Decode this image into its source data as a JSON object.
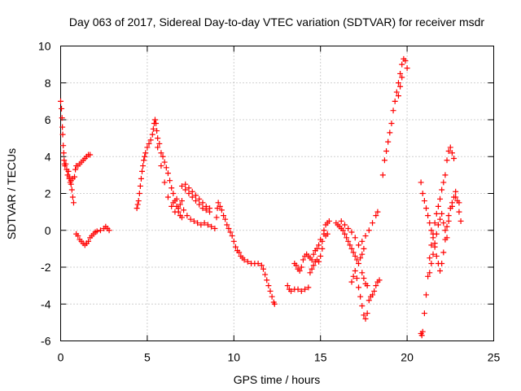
{
  "chart_data": {
    "type": "scatter",
    "title": "Day 063 of 2017, Sidereal Day-to-day VTEC variation (SDTVAR) for receiver msdr",
    "xlabel": "GPS time / hours",
    "ylabel": "SDTVAR / TECUs",
    "xlim": [
      0,
      25
    ],
    "ylim": [
      -6,
      10
    ],
    "xticks": [
      "0",
      "5",
      "10",
      "15",
      "20",
      "25"
    ],
    "yticks": [
      "-6",
      "-4",
      "-2",
      "0",
      "2",
      "4",
      "6",
      "8",
      "10"
    ],
    "grid": true,
    "marker": "+",
    "color": "#ff0000",
    "series": [
      {
        "name": "SDTVAR",
        "points": [
          [
            0.0,
            7.0
          ],
          [
            0.05,
            6.6
          ],
          [
            0.08,
            6.1
          ],
          [
            0.1,
            5.6
          ],
          [
            0.12,
            5.2
          ],
          [
            0.15,
            4.6
          ],
          [
            0.18,
            4.2
          ],
          [
            0.2,
            3.8
          ],
          [
            0.22,
            3.6
          ],
          [
            0.25,
            3.5
          ],
          [
            0.3,
            3.6
          ],
          [
            0.35,
            3.3
          ],
          [
            0.4,
            3.0
          ],
          [
            0.45,
            3.2
          ],
          [
            0.5,
            2.9
          ],
          [
            0.55,
            2.6
          ],
          [
            0.6,
            2.5
          ],
          [
            0.65,
            2.2
          ],
          [
            0.7,
            1.8
          ],
          [
            0.75,
            1.5
          ],
          [
            0.5,
            2.8
          ],
          [
            0.6,
            2.7
          ],
          [
            0.7,
            2.8
          ],
          [
            0.8,
            2.9
          ],
          [
            0.85,
            3.3
          ],
          [
            0.9,
            3.5
          ],
          [
            1.0,
            3.5
          ],
          [
            1.1,
            3.6
          ],
          [
            1.2,
            3.7
          ],
          [
            1.3,
            3.8
          ],
          [
            1.4,
            3.9
          ],
          [
            1.5,
            4.0
          ],
          [
            1.6,
            4.1
          ],
          [
            1.7,
            4.1
          ],
          [
            0.9,
            -0.2
          ],
          [
            1.0,
            -0.3
          ],
          [
            1.1,
            -0.5
          ],
          [
            1.2,
            -0.6
          ],
          [
            1.3,
            -0.7
          ],
          [
            1.4,
            -0.8
          ],
          [
            1.5,
            -0.7
          ],
          [
            1.6,
            -0.6
          ],
          [
            1.7,
            -0.4
          ],
          [
            1.8,
            -0.3
          ],
          [
            1.9,
            -0.2
          ],
          [
            2.0,
            -0.1
          ],
          [
            2.1,
            -0.05
          ],
          [
            2.3,
            0.0
          ],
          [
            2.5,
            0.1
          ],
          [
            2.6,
            0.2
          ],
          [
            2.7,
            0.1
          ],
          [
            2.8,
            0.0
          ],
          [
            4.4,
            1.2
          ],
          [
            4.45,
            1.4
          ],
          [
            4.5,
            1.6
          ],
          [
            4.55,
            2.0
          ],
          [
            4.6,
            2.4
          ],
          [
            4.65,
            2.8
          ],
          [
            4.7,
            3.2
          ],
          [
            4.75,
            3.5
          ],
          [
            4.8,
            3.8
          ],
          [
            4.85,
            4.0
          ],
          [
            4.9,
            4.2
          ],
          [
            5.0,
            4.5
          ],
          [
            5.1,
            4.7
          ],
          [
            5.2,
            4.9
          ],
          [
            5.3,
            5.2
          ],
          [
            5.35,
            5.5
          ],
          [
            5.4,
            5.8
          ],
          [
            5.45,
            6.0
          ],
          [
            5.5,
            5.8
          ],
          [
            5.55,
            5.4
          ],
          [
            5.6,
            5.0
          ],
          [
            5.7,
            4.7
          ],
          [
            5.8,
            4.2
          ],
          [
            5.9,
            4.0
          ],
          [
            6.0,
            3.7
          ],
          [
            6.1,
            3.4
          ],
          [
            6.2,
            3.1
          ],
          [
            6.3,
            2.7
          ],
          [
            6.4,
            2.3
          ],
          [
            6.5,
            2.0
          ],
          [
            6.6,
            1.6
          ],
          [
            6.7,
            1.3
          ],
          [
            6.8,
            1.0
          ],
          [
            6.9,
            0.8
          ],
          [
            7.0,
            0.7
          ],
          [
            5.6,
            4.5
          ],
          [
            5.8,
            3.5
          ],
          [
            6.0,
            2.6
          ],
          [
            6.2,
            1.8
          ],
          [
            6.4,
            1.3
          ],
          [
            6.6,
            1.0
          ],
          [
            6.8,
            1.2
          ],
          [
            7.0,
            1.6
          ],
          [
            7.2,
            2.2
          ],
          [
            7.4,
            2.0
          ],
          [
            7.6,
            1.8
          ],
          [
            7.8,
            1.6
          ],
          [
            8.0,
            1.4
          ],
          [
            8.2,
            1.2
          ],
          [
            8.4,
            1.1
          ],
          [
            8.6,
            1.0
          ],
          [
            7.0,
            2.4
          ],
          [
            7.2,
            2.5
          ],
          [
            7.4,
            2.3
          ],
          [
            7.6,
            2.1
          ],
          [
            7.8,
            1.9
          ],
          [
            8.0,
            1.7
          ],
          [
            8.2,
            1.5
          ],
          [
            8.4,
            1.3
          ],
          [
            8.6,
            1.2
          ],
          [
            6.5,
            1.5
          ],
          [
            6.7,
            1.7
          ],
          [
            6.9,
            1.4
          ],
          [
            7.1,
            1.1
          ],
          [
            7.3,
            0.8
          ],
          [
            7.5,
            0.6
          ],
          [
            7.7,
            0.5
          ],
          [
            7.9,
            0.4
          ],
          [
            8.1,
            0.3
          ],
          [
            8.3,
            0.4
          ],
          [
            8.5,
            0.3
          ],
          [
            8.7,
            0.2
          ],
          [
            8.9,
            0.1
          ],
          [
            9.0,
            0.7
          ],
          [
            9.05,
            1.2
          ],
          [
            9.1,
            1.5
          ],
          [
            9.2,
            1.3
          ],
          [
            9.3,
            1.1
          ],
          [
            9.4,
            0.8
          ],
          [
            9.5,
            0.6
          ],
          [
            9.6,
            0.3
          ],
          [
            9.7,
            0.1
          ],
          [
            9.8,
            -0.1
          ],
          [
            9.9,
            -0.3
          ],
          [
            10.0,
            -0.6
          ],
          [
            10.1,
            -0.9
          ],
          [
            10.2,
            -1.1
          ],
          [
            10.3,
            -1.2
          ],
          [
            10.4,
            -1.4
          ],
          [
            10.5,
            -1.5
          ],
          [
            10.6,
            -1.6
          ],
          [
            10.8,
            -1.7
          ],
          [
            11.0,
            -1.8
          ],
          [
            11.2,
            -1.8
          ],
          [
            11.4,
            -1.8
          ],
          [
            11.6,
            -1.9
          ],
          [
            11.7,
            -2.1
          ],
          [
            11.8,
            -2.4
          ],
          [
            11.9,
            -2.7
          ],
          [
            12.0,
            -3.0
          ],
          [
            12.1,
            -3.3
          ],
          [
            12.2,
            -3.6
          ],
          [
            12.3,
            -3.9
          ],
          [
            12.35,
            -4.0
          ],
          [
            13.1,
            -3.0
          ],
          [
            13.2,
            -3.2
          ],
          [
            13.3,
            -3.3
          ],
          [
            13.5,
            -3.2
          ],
          [
            13.7,
            -3.2
          ],
          [
            13.9,
            -3.3
          ],
          [
            14.1,
            -3.2
          ],
          [
            14.3,
            -3.1
          ],
          [
            13.5,
            -1.8
          ],
          [
            13.6,
            -1.9
          ],
          [
            13.7,
            -2.1
          ],
          [
            13.8,
            -2.2
          ],
          [
            13.9,
            -2.0
          ],
          [
            14.0,
            -1.6
          ],
          [
            14.1,
            -1.4
          ],
          [
            14.2,
            -1.3
          ],
          [
            14.3,
            -1.4
          ],
          [
            14.4,
            -1.5
          ],
          [
            14.5,
            -1.6
          ],
          [
            14.6,
            -1.3
          ],
          [
            14.7,
            -1.1
          ],
          [
            14.8,
            -1.0
          ],
          [
            14.9,
            -0.8
          ],
          [
            15.0,
            -0.5
          ],
          [
            14.4,
            -2.3
          ],
          [
            14.5,
            -2.1
          ],
          [
            14.6,
            -1.9
          ],
          [
            14.7,
            -1.7
          ],
          [
            14.8,
            -1.6
          ],
          [
            14.9,
            -1.7
          ],
          [
            15.0,
            -1.4
          ],
          [
            15.1,
            -1.0
          ],
          [
            15.1,
            -0.6
          ],
          [
            15.2,
            0.0
          ],
          [
            15.3,
            0.3
          ],
          [
            15.4,
            0.4
          ],
          [
            15.5,
            0.5
          ],
          [
            15.2,
            -0.2
          ],
          [
            15.3,
            -0.3
          ],
          [
            15.4,
            -0.2
          ],
          [
            15.9,
            0.4
          ],
          [
            16.0,
            0.3
          ],
          [
            16.1,
            0.2
          ],
          [
            16.2,
            0.1
          ],
          [
            16.3,
            0.0
          ],
          [
            16.4,
            -0.2
          ],
          [
            16.5,
            -0.4
          ],
          [
            16.6,
            -0.6
          ],
          [
            16.7,
            -0.8
          ],
          [
            16.8,
            -1.0
          ],
          [
            16.9,
            -1.2
          ],
          [
            17.0,
            -1.4
          ],
          [
            17.1,
            -1.6
          ],
          [
            17.2,
            -1.8
          ],
          [
            17.3,
            -1.5
          ],
          [
            17.4,
            -1.3
          ],
          [
            17.5,
            -1.0
          ],
          [
            16.2,
            0.5
          ],
          [
            16.4,
            0.3
          ],
          [
            16.6,
            0.1
          ],
          [
            16.8,
            -0.1
          ],
          [
            17.0,
            -0.4
          ],
          [
            17.2,
            -0.8
          ],
          [
            17.4,
            -0.6
          ],
          [
            17.6,
            -0.3
          ],
          [
            17.8,
            0.0
          ],
          [
            18.0,
            0.4
          ],
          [
            18.2,
            0.8
          ],
          [
            18.3,
            1.0
          ],
          [
            16.8,
            -2.8
          ],
          [
            16.9,
            -2.5
          ],
          [
            17.0,
            -2.2
          ],
          [
            17.1,
            -2.6
          ],
          [
            17.2,
            -3.1
          ],
          [
            17.3,
            -3.6
          ],
          [
            17.4,
            -4.1
          ],
          [
            17.5,
            -4.6
          ],
          [
            17.6,
            -4.8
          ],
          [
            17.7,
            -4.5
          ],
          [
            17.8,
            -3.8
          ],
          [
            17.9,
            -3.6
          ],
          [
            18.0,
            -3.5
          ],
          [
            18.1,
            -3.3
          ],
          [
            18.2,
            -3.0
          ],
          [
            18.3,
            -2.8
          ],
          [
            18.4,
            -2.7
          ],
          [
            17.4,
            -2.3
          ],
          [
            17.5,
            -2.6
          ],
          [
            17.6,
            -2.9
          ],
          [
            17.7,
            -3.0
          ],
          [
            18.6,
            3.0
          ],
          [
            18.7,
            3.8
          ],
          [
            18.8,
            4.3
          ],
          [
            18.9,
            4.8
          ],
          [
            19.0,
            5.3
          ],
          [
            19.1,
            5.8
          ],
          [
            19.2,
            6.5
          ],
          [
            19.3,
            7.0
          ],
          [
            19.4,
            7.5
          ],
          [
            19.5,
            8.0
          ],
          [
            19.6,
            8.5
          ],
          [
            19.7,
            9.0
          ],
          [
            19.8,
            9.3
          ],
          [
            19.9,
            9.2
          ],
          [
            20.0,
            8.8
          ],
          [
            19.5,
            7.3
          ],
          [
            19.6,
            7.8
          ],
          [
            19.7,
            8.3
          ],
          [
            20.8,
            -5.6
          ],
          [
            20.85,
            -5.7
          ],
          [
            20.9,
            -5.5
          ],
          [
            21.0,
            -4.5
          ],
          [
            21.1,
            -3.5
          ],
          [
            21.2,
            -2.5
          ],
          [
            21.3,
            -1.5
          ],
          [
            21.4,
            -0.8
          ],
          [
            21.5,
            -0.2
          ],
          [
            21.6,
            0.4
          ],
          [
            21.7,
            0.9
          ],
          [
            21.8,
            1.3
          ],
          [
            21.9,
            1.7
          ],
          [
            22.0,
            2.2
          ],
          [
            22.1,
            2.6
          ],
          [
            22.2,
            3.0
          ],
          [
            22.3,
            3.8
          ],
          [
            22.4,
            4.3
          ],
          [
            22.5,
            4.5
          ],
          [
            22.6,
            4.2
          ],
          [
            22.7,
            3.9
          ],
          [
            20.8,
            2.6
          ],
          [
            20.9,
            2.0
          ],
          [
            21.0,
            1.6
          ],
          [
            21.1,
            1.2
          ],
          [
            21.2,
            0.8
          ],
          [
            21.3,
            0.4
          ],
          [
            21.4,
            0.0
          ],
          [
            21.5,
            -0.4
          ],
          [
            21.6,
            -0.9
          ],
          [
            21.7,
            -1.4
          ],
          [
            21.8,
            -1.8
          ],
          [
            21.9,
            -2.2
          ],
          [
            22.0,
            -1.8
          ],
          [
            22.1,
            -1.2
          ],
          [
            22.2,
            -0.5
          ],
          [
            22.3,
            0.2
          ],
          [
            22.4,
            0.8
          ],
          [
            22.5,
            1.2
          ],
          [
            22.6,
            1.5
          ],
          [
            22.7,
            1.8
          ],
          [
            22.8,
            2.1
          ],
          [
            22.9,
            1.6
          ],
          [
            23.0,
            1.0
          ],
          [
            23.1,
            0.5
          ],
          [
            21.3,
            -2.3
          ],
          [
            21.4,
            -1.8
          ],
          [
            21.5,
            -1.3
          ],
          [
            21.6,
            -0.7
          ],
          [
            21.7,
            -0.2
          ],
          [
            21.8,
            0.3
          ],
          [
            21.9,
            0.6
          ],
          [
            22.0,
            0.9
          ],
          [
            22.1,
            0.4
          ],
          [
            22.2,
            0.0
          ],
          [
            22.3,
            -0.4
          ],
          [
            22.4,
            0.5
          ],
          [
            22.6,
            1.3
          ],
          [
            22.8,
            1.8
          ],
          [
            23.0,
            1.5
          ]
        ]
      }
    ]
  }
}
